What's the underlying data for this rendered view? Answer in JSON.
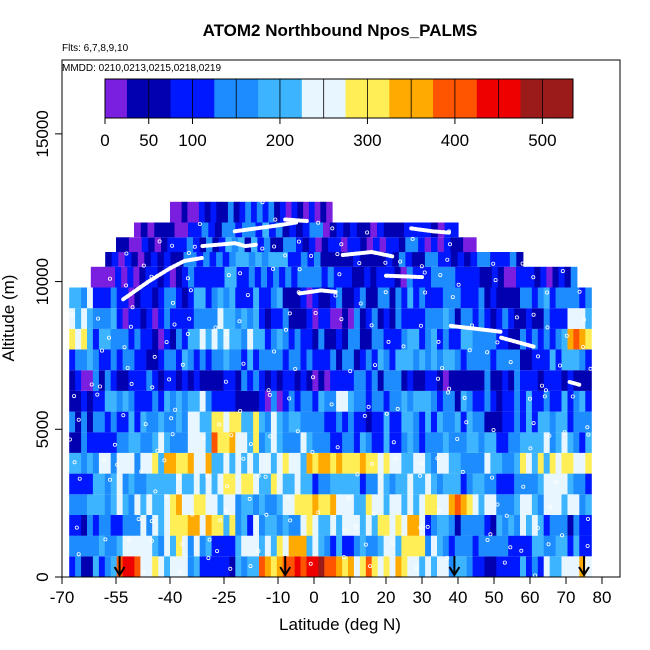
{
  "chart_data": {
    "type": "heatmap",
    "title": "ATOM2 Northbound Npos_PALMS",
    "flights_text": "Flts: 6,7,8,9,10",
    "dates_text": "MMDD: 0210,0213,0215,0218,0219",
    "xlabel": "Latitude (deg N)",
    "ylabel": "Altitude (m)",
    "xlim": [
      -70,
      85
    ],
    "ylim": [
      0,
      17500
    ],
    "x_ticks": [
      -70,
      -55,
      -40,
      -25,
      -10,
      0,
      10,
      20,
      30,
      40,
      50,
      60,
      70,
      80
    ],
    "x_tick_labels": [
      "-70",
      "-55",
      "-40",
      "-25",
      "-10",
      "0",
      "10",
      "20",
      "30",
      "40",
      "50",
      "60",
      "70",
      "80"
    ],
    "y_ticks": [
      0,
      5000,
      10000,
      15000
    ],
    "y_tick_labels": [
      "0",
      "5000",
      "10000",
      "15000"
    ],
    "colorbar": {
      "range": [
        0,
        535
      ],
      "ticks": [
        0,
        50,
        100,
        200,
        300,
        400,
        500
      ],
      "tick_labels": [
        "0",
        "50",
        "100",
        "200",
        "300",
        "400",
        "500"
      ],
      "boundaries": [
        0,
        50,
        100,
        150,
        200,
        250,
        300,
        350,
        400,
        450,
        500
      ],
      "colors": [
        "#7a1fe0",
        "#0000b0",
        "#0018ff",
        "#1c8cff",
        "#3cb4ff",
        "#e8f6ff",
        "#ffee55",
        "#ffaa00",
        "#ff5500",
        "#ee0000",
        "#9b1b1b"
      ]
    },
    "profile_layers": [
      {
        "alt": [
          0,
          700
        ],
        "lat": [
          -68,
          77
        ],
        "values": [
          120,
          180,
          420,
          300,
          280,
          180,
          100,
          200,
          380,
          420,
          460,
          380,
          350,
          300,
          260,
          250,
          200,
          120,
          90,
          160,
          250,
          320
        ]
      },
      {
        "alt": [
          700,
          1400
        ],
        "lat": [
          -68,
          77
        ],
        "values": [
          150,
          200,
          250,
          240,
          300,
          210,
          180,
          250,
          270,
          330,
          220,
          170,
          200,
          250,
          300,
          230,
          200,
          150,
          120,
          180,
          220,
          180
        ]
      },
      {
        "alt": [
          1400,
          2100
        ],
        "lat": [
          -68,
          77
        ],
        "values": [
          120,
          160,
          200,
          240,
          300,
          350,
          300,
          200,
          180,
          220,
          260,
          240,
          280,
          300,
          310,
          200,
          150,
          120,
          180,
          200,
          160,
          140
        ]
      },
      {
        "alt": [
          2100,
          2800
        ],
        "lat": [
          -68,
          77
        ],
        "values": [
          180,
          200,
          230,
          260,
          300,
          280,
          250,
          210,
          230,
          310,
          330,
          300,
          260,
          240,
          220,
          270,
          380,
          260,
          200,
          230,
          260,
          240
        ]
      },
      {
        "alt": [
          2800,
          3500
        ],
        "lat": [
          -68,
          77
        ],
        "values": [
          140,
          160,
          200,
          220,
          240,
          250,
          280,
          300,
          260,
          220,
          200,
          180,
          200,
          240,
          260,
          230,
          200,
          180,
          160,
          200,
          230,
          200
        ]
      },
      {
        "alt": [
          3500,
          4200
        ],
        "lat": [
          -68,
          77
        ],
        "values": [
          200,
          220,
          240,
          280,
          320,
          300,
          260,
          230,
          250,
          280,
          320,
          350,
          330,
          280,
          240,
          220,
          200,
          210,
          240,
          260,
          300,
          280
        ]
      },
      {
        "alt": [
          4200,
          4900
        ],
        "lat": [
          -68,
          77
        ],
        "values": [
          120,
          150,
          180,
          200,
          230,
          260,
          380,
          300,
          240,
          200,
          180,
          160,
          150,
          170,
          190,
          210,
          180,
          160,
          140,
          180,
          220,
          200
        ]
      },
      {
        "alt": [
          4900,
          5600
        ],
        "lat": [
          -68,
          77
        ],
        "values": [
          100,
          140,
          170,
          190,
          210,
          240,
          330,
          260,
          220,
          190,
          160,
          140,
          130,
          150,
          170,
          190,
          160,
          140,
          120,
          160,
          200,
          180
        ]
      },
      {
        "alt": [
          5600,
          6300
        ],
        "lat": [
          -68,
          77
        ],
        "values": [
          140,
          180,
          160,
          140,
          180,
          200,
          180,
          120,
          100,
          140,
          180,
          200,
          170,
          140,
          160,
          180,
          150,
          130,
          120,
          150,
          170,
          160
        ]
      },
      {
        "alt": [
          6300,
          7000
        ],
        "lat": [
          -68,
          77
        ],
        "values": [
          90,
          120,
          150,
          130,
          110,
          100,
          120,
          140,
          110,
          90,
          80,
          100,
          120,
          140,
          110,
          90,
          100,
          120,
          110,
          80,
          100,
          120
        ]
      },
      {
        "alt": [
          7000,
          7700
        ],
        "lat": [
          -68,
          77
        ],
        "values": [
          160,
          180,
          140,
          120,
          150,
          170,
          200,
          180,
          160,
          140,
          120,
          130,
          150,
          170,
          190,
          180,
          160,
          150,
          140,
          130,
          160,
          180
        ]
      },
      {
        "alt": [
          7700,
          8400
        ],
        "lat": [
          -68,
          77
        ],
        "values": [
          300,
          200,
          120,
          80,
          140,
          200,
          260,
          230,
          190,
          150,
          120,
          100,
          130,
          160,
          190,
          170,
          150,
          130,
          110,
          140,
          180,
          360
        ]
      },
      {
        "alt": [
          8400,
          9100
        ],
        "lat": [
          -68,
          77
        ],
        "values": [
          240,
          160,
          100,
          60,
          110,
          160,
          200,
          180,
          150,
          120,
          100,
          90,
          110,
          140,
          170,
          160,
          140,
          120,
          100,
          130,
          170,
          280
        ]
      },
      {
        "alt": [
          9100,
          9800
        ],
        "lat": [
          -68,
          77
        ],
        "values": [
          220,
          140,
          60,
          90,
          130,
          170,
          210,
          180,
          150,
          120,
          100,
          110,
          130,
          150,
          170,
          160,
          140,
          120,
          110,
          140,
          160,
          180
        ]
      },
      {
        "alt": [
          9800,
          10500
        ],
        "lat": [
          -62,
          73
        ],
        "values": [
          30,
          60,
          80,
          100,
          130,
          160,
          190,
          170,
          140,
          110,
          90,
          80,
          100,
          120,
          140,
          130,
          110,
          90,
          80,
          100
        ]
      },
      {
        "alt": [
          10500,
          11000
        ],
        "lat": [
          -58,
          58
        ],
        "values": [
          60,
          80,
          100,
          130,
          160,
          190,
          170,
          140,
          110,
          90,
          80,
          100,
          120,
          140,
          130,
          110
        ]
      },
      {
        "alt": [
          11000,
          11500
        ],
        "lat": [
          -55,
          45
        ],
        "values": [
          70,
          90,
          110,
          140,
          170,
          150,
          120,
          100,
          80,
          70,
          90,
          110,
          100,
          80
        ]
      },
      {
        "alt": [
          11500,
          12000
        ],
        "lat": [
          -50,
          40
        ],
        "values": [
          40,
          70,
          100,
          130,
          160,
          140,
          120,
          90,
          60,
          80,
          100,
          90
        ]
      },
      {
        "alt": [
          12000,
          12700
        ],
        "lat": [
          -40,
          5
        ],
        "values": [
          50,
          80,
          110,
          140,
          120,
          90,
          70
        ]
      }
    ],
    "flight_tracks": [
      {
        "lat": [
          -53,
          -46,
          -40,
          -36,
          -31
        ],
        "alt": [
          9400,
          10000,
          10450,
          10700,
          10800
        ]
      },
      {
        "lat": [
          -22,
          -10,
          -5
        ],
        "alt": [
          11700,
          11900,
          12000
        ]
      },
      {
        "lat": [
          -31,
          -22,
          -19,
          -16
        ],
        "alt": [
          11200,
          11300,
          11200,
          11250
        ]
      },
      {
        "lat": [
          8,
          16,
          22
        ],
        "alt": [
          10900,
          11000,
          10850
        ]
      },
      {
        "lat": [
          -4,
          2,
          6
        ],
        "alt": [
          9600,
          9700,
          9650
        ]
      },
      {
        "lat": [
          27,
          33,
          38
        ],
        "alt": [
          11800,
          11700,
          11650
        ]
      },
      {
        "lat": [
          38,
          45,
          52
        ],
        "alt": [
          8500,
          8400,
          8300
        ]
      },
      {
        "lat": [
          52,
          58,
          61
        ],
        "alt": [
          8100,
          7900,
          7800
        ]
      },
      {
        "lat": [
          71,
          74
        ],
        "alt": [
          6600,
          6500
        ]
      },
      {
        "lat": [
          20,
          30
        ],
        "alt": [
          10200,
          10150
        ]
      },
      {
        "lat": [
          -8,
          -2
        ],
        "alt": [
          12100,
          12050
        ]
      }
    ],
    "arrows_lat": [
      -54,
      -8,
      39,
      75
    ]
  }
}
